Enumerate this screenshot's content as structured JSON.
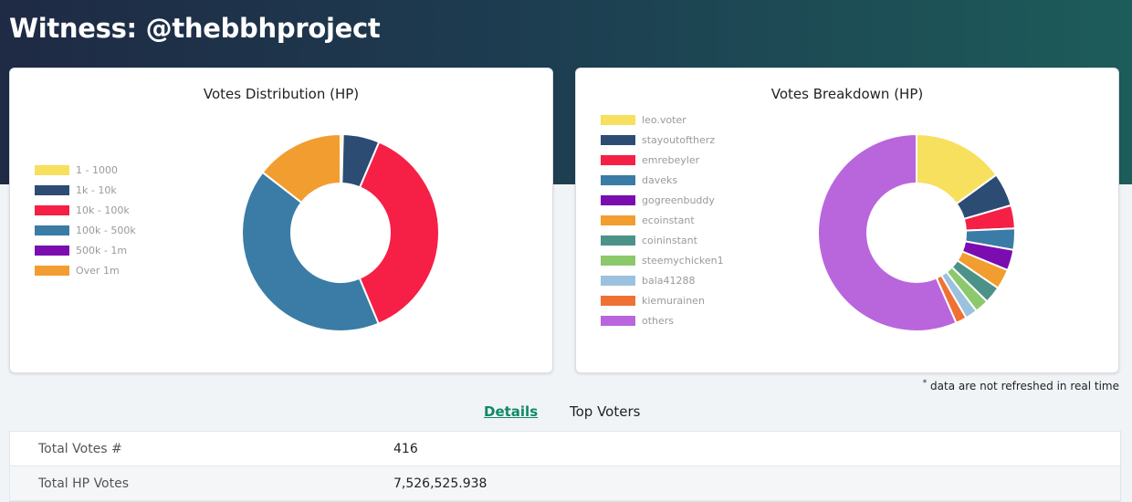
{
  "header": {
    "title": "Witness: @thebbhproject"
  },
  "distribution": {
    "title": "Votes Distribution (HP)",
    "chart_data": {
      "type": "pie",
      "donut": true,
      "title": "Votes Distribution (HP)",
      "legend_position": "left",
      "labels": [
        "1 - 1000",
        "1k - 10k",
        "10k - 100k",
        "100k - 500k",
        "500k - 1m",
        "Over 1m"
      ],
      "colors": [
        "#f6e05e",
        "#2c4c74",
        "#f61f46",
        "#3a7ca5",
        "#7a0cb0",
        "#f29d30"
      ],
      "values": [
        0.4,
        6.0,
        37.3,
        41.8,
        0.0,
        14.5
      ]
    }
  },
  "breakdown": {
    "title": "Votes Breakdown (HP)",
    "chart_data": {
      "type": "pie",
      "donut": true,
      "title": "Votes Breakdown (HP)",
      "legend_position": "left",
      "labels": [
        "leo.voter",
        "stayoutoftherz",
        "emrebeyler",
        "daveks",
        "gogreenbuddy",
        "ecoinstant",
        "coininstant",
        "steemychicken1",
        "bala41288",
        "kiemurainen",
        "others"
      ],
      "colors": [
        "#f6e05e",
        "#2c4c74",
        "#f61f46",
        "#3a7ca5",
        "#7a0cb0",
        "#f29d30",
        "#4c9289",
        "#8cc96c",
        "#9cc1df",
        "#ef7133",
        "#b966dd"
      ],
      "values": [
        15.0,
        5.5,
        3.8,
        3.5,
        3.4,
        3.3,
        2.8,
        2.3,
        2.0,
        1.8,
        56.6
      ]
    }
  },
  "note": "data are not refreshed in real time",
  "tabs": {
    "details": "Details",
    "top_voters": "Top Voters"
  },
  "details_table": [
    {
      "label": "Total Votes #",
      "value": "416"
    },
    {
      "label": "Total HP Votes",
      "value": "7,526,525.938"
    }
  ]
}
